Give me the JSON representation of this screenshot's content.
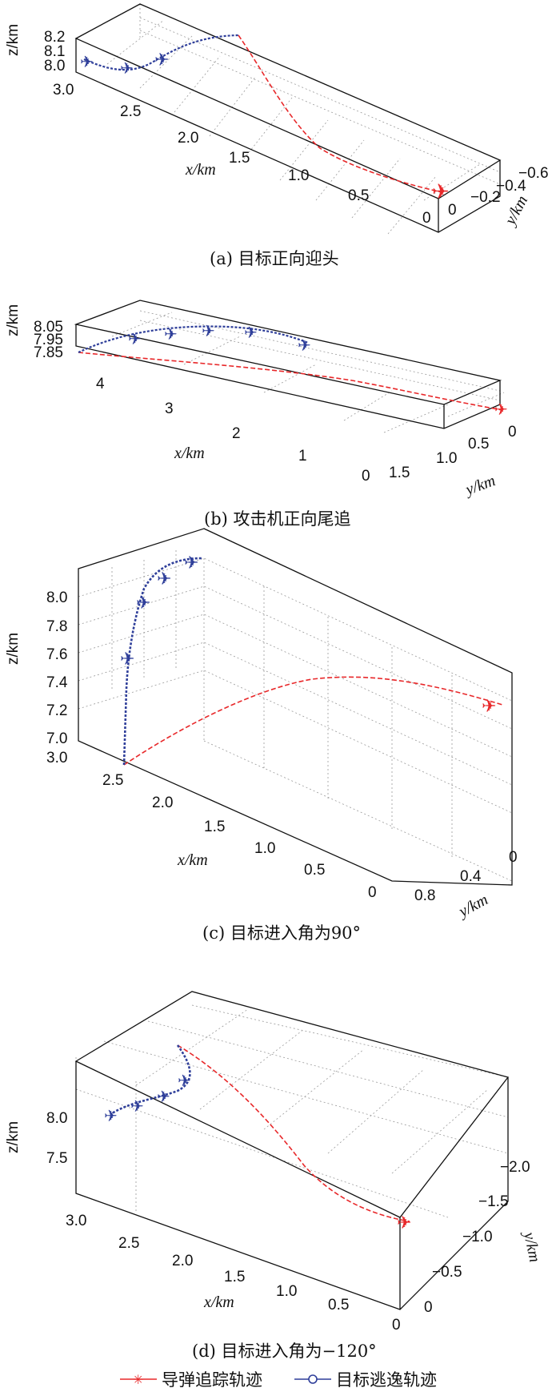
{
  "legend": {
    "missile": "导弹追踪轨迹",
    "target": "目标逃逸轨迹"
  },
  "colors": {
    "missile": "#e8282a",
    "target": "#2f3f9a"
  },
  "chart_data": [
    {
      "type": "line",
      "caption": "(a) 目标正向迎头",
      "xlabel": "x/km",
      "ylabel": "y/km",
      "zlabel": "z/km",
      "xticks": [
        "3.0",
        "2.5",
        "2.0",
        "1.5",
        "1.0",
        "0.5",
        "0"
      ],
      "yticks": [
        "0",
        "−0.2",
        "−0.4",
        "−0.6"
      ],
      "zticks": [
        "8.0",
        "8.1",
        "8.2"
      ],
      "series": [
        {
          "name": "导弹追踪轨迹",
          "points": [
            [
              0.1,
              -0.05,
              8.02
            ],
            [
              0.6,
              -0.08,
              8.05
            ],
            [
              1.1,
              -0.15,
              8.12
            ],
            [
              1.6,
              -0.3,
              8.19
            ],
            [
              2.1,
              -0.55,
              8.2
            ]
          ]
        },
        {
          "name": "目标逃逸轨迹",
          "points": [
            [
              3.0,
              0.0,
              8.04
            ],
            [
              2.8,
              -0.1,
              8.02
            ],
            [
              2.6,
              -0.2,
              8.05
            ],
            [
              2.4,
              -0.35,
              8.12
            ],
            [
              2.1,
              -0.55,
              8.2
            ]
          ]
        }
      ]
    },
    {
      "type": "line",
      "caption": "(b) 攻击机正向尾追",
      "xlabel": "x/km",
      "ylabel": "y/km",
      "zlabel": "z/km",
      "xticks": [
        "4",
        "3",
        "2",
        "1",
        "0"
      ],
      "yticks": [
        "1.5",
        "1.0",
        "0.5",
        "0"
      ],
      "zticks": [
        "7.85",
        "7.95",
        "8.05"
      ],
      "series": [
        {
          "name": "导弹追踪轨迹",
          "points": [
            [
              0.05,
              0.0,
              7.87
            ],
            [
              1.2,
              0.3,
              7.88
            ],
            [
              2.4,
              0.7,
              7.9
            ],
            [
              3.6,
              1.3,
              7.9
            ],
            [
              4.6,
              1.9,
              7.87
            ]
          ]
        },
        {
          "name": "目标逃逸轨迹",
          "points": [
            [
              4.6,
              1.9,
              7.87
            ],
            [
              4.0,
              1.5,
              7.97
            ],
            [
              3.2,
              1.2,
              8.02
            ],
            [
              2.4,
              0.9,
              8.05
            ],
            [
              1.6,
              0.6,
              8.05
            ]
          ]
        }
      ]
    },
    {
      "type": "line",
      "caption": "(c) 目标进入角为90°",
      "xlabel": "x/km",
      "ylabel": "y/km",
      "zlabel": "z/km",
      "xticks": [
        "3.0",
        "2.5",
        "2.0",
        "1.5",
        "1.0",
        "0.5",
        "0"
      ],
      "yticks": [
        "0.8",
        "0.4",
        "0"
      ],
      "zticks": [
        "7.0",
        "7.2",
        "7.4",
        "7.6",
        "7.8",
        "8.0"
      ],
      "series": [
        {
          "name": "导弹追踪轨迹",
          "points": [
            [
              0.05,
              0.0,
              7.27
            ],
            [
              0.6,
              0.05,
              7.35
            ],
            [
              1.2,
              0.15,
              7.35
            ],
            [
              1.9,
              0.4,
              7.2
            ],
            [
              2.5,
              0.85,
              6.92
            ]
          ]
        },
        {
          "name": "目标逃逸轨迹",
          "points": [
            [
              2.5,
              0.85,
              6.92
            ],
            [
              2.5,
              0.85,
              7.3
            ],
            [
              2.5,
              0.8,
              7.6
            ],
            [
              2.45,
              0.7,
              7.9
            ],
            [
              2.3,
              0.5,
              8.2
            ]
          ]
        }
      ]
    },
    {
      "type": "line",
      "caption": "(d) 目标进入角为−120°",
      "xlabel": "x/km",
      "ylabel": "y/km",
      "zlabel": "z/km",
      "xticks": [
        "3.0",
        "2.5",
        "2.0",
        "1.5",
        "1.0",
        "0.5",
        "0"
      ],
      "yticks": [
        "0",
        "−0.5",
        "−1.0",
        "−1.5",
        "−2.0"
      ],
      "zticks": [
        "7.5",
        "8.0"
      ],
      "series": [
        {
          "name": "导弹追踪轨迹",
          "points": [
            [
              0.1,
              -0.2,
              8.0
            ],
            [
              0.7,
              -0.6,
              8.05
            ],
            [
              1.3,
              -1.2,
              8.15
            ],
            [
              1.8,
              -1.8,
              8.2
            ],
            [
              2.2,
              -2.0,
              8.3
            ]
          ]
        },
        {
          "name": "目标逃逸轨迹",
          "points": [
            [
              2.2,
              -2.0,
              8.3
            ],
            [
              2.3,
              -1.8,
              8.2
            ],
            [
              2.6,
              -1.6,
              8.15
            ],
            [
              2.9,
              -1.5,
              8.1
            ],
            [
              3.1,
              -1.4,
              8.05
            ]
          ]
        }
      ]
    }
  ]
}
